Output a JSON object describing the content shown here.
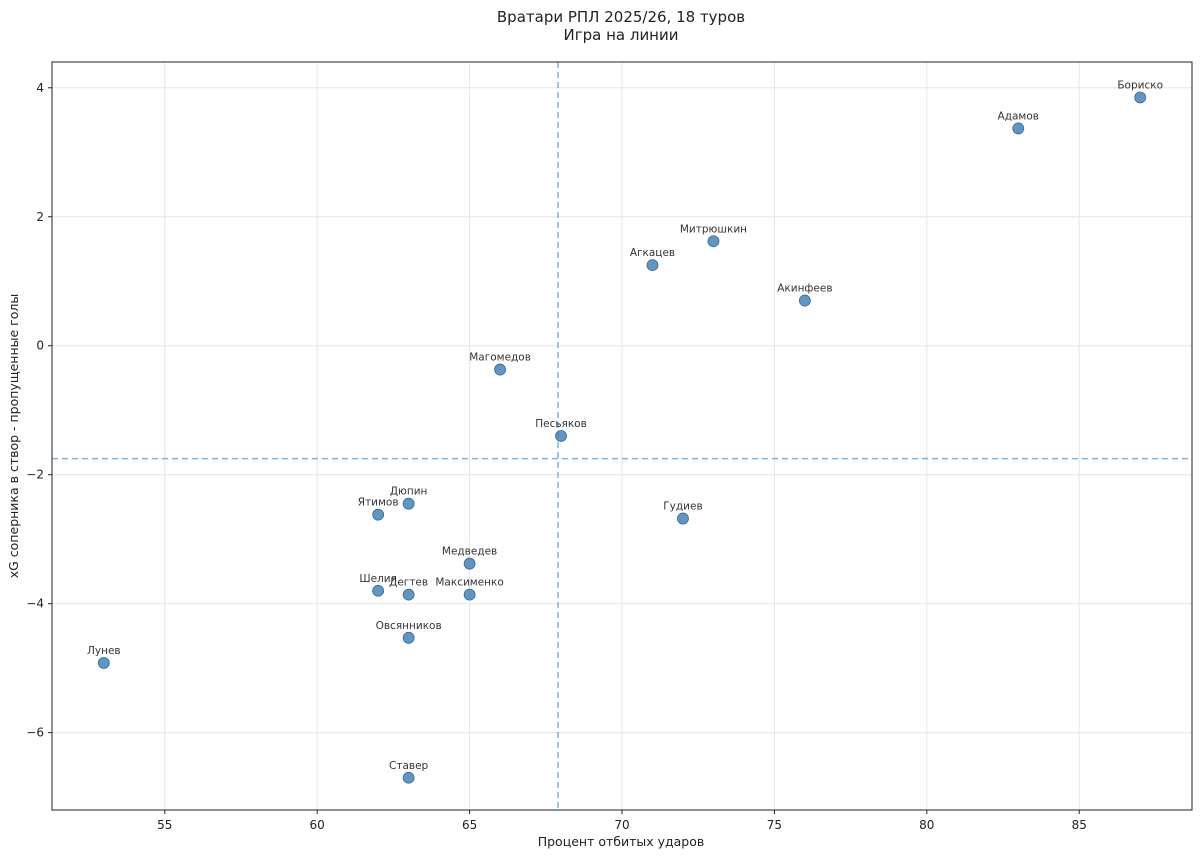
{
  "chart_data": {
    "type": "scatter",
    "title": "Вратари РПЛ 2025/26, 18 туров",
    "subtitle": "Игра на линии",
    "xlabel": "Процент отбитых ударов",
    "ylabel": "xG соперника в створ - пропущенные голы",
    "xlim": [
      51.3,
      88.7
    ],
    "ylim": [
      -7.2,
      4.4
    ],
    "x_ticks": [
      55,
      60,
      65,
      70,
      75,
      80,
      85
    ],
    "y_ticks": [
      4,
      2,
      0,
      -2,
      -4,
      -6
    ],
    "x_tick_labels": [
      "55",
      "60",
      "65",
      "70",
      "75",
      "80",
      "85"
    ],
    "y_tick_labels": [
      "4",
      "2",
      "0",
      "−2",
      "−4",
      "−6"
    ],
    "grid": true,
    "reference_lines": {
      "x": 67.9,
      "y": -1.75
    },
    "point_color": "#3f7fb5",
    "line_color": "#7fb1d9",
    "points": [
      {
        "label": "Бориско",
        "x": 87,
        "y": 3.85
      },
      {
        "label": "Адамов",
        "x": 83,
        "y": 3.37
      },
      {
        "label": "Митрюшкин",
        "x": 73,
        "y": 1.62
      },
      {
        "label": "Агкацев",
        "x": 71,
        "y": 1.25
      },
      {
        "label": "Акинфеев",
        "x": 76,
        "y": 0.7
      },
      {
        "label": "Магомедов",
        "x": 66,
        "y": -0.37
      },
      {
        "label": "Песьяков",
        "x": 68,
        "y": -1.4
      },
      {
        "label": "Дюпин",
        "x": 63,
        "y": -2.45
      },
      {
        "label": "Ятимов",
        "x": 62,
        "y": -2.62
      },
      {
        "label": "Гудиев",
        "x": 72,
        "y": -2.68
      },
      {
        "label": "Медведев",
        "x": 65,
        "y": -3.38
      },
      {
        "label": "Шелия",
        "x": 62,
        "y": -3.8
      },
      {
        "label": "Дегтев",
        "x": 63,
        "y": -3.86
      },
      {
        "label": "Максименко",
        "x": 65,
        "y": -3.86
      },
      {
        "label": "Овсянников",
        "x": 63,
        "y": -4.53
      },
      {
        "label": "Лунев",
        "x": 53,
        "y": -4.92
      },
      {
        "label": "Ставер",
        "x": 63,
        "y": -6.7
      }
    ]
  }
}
